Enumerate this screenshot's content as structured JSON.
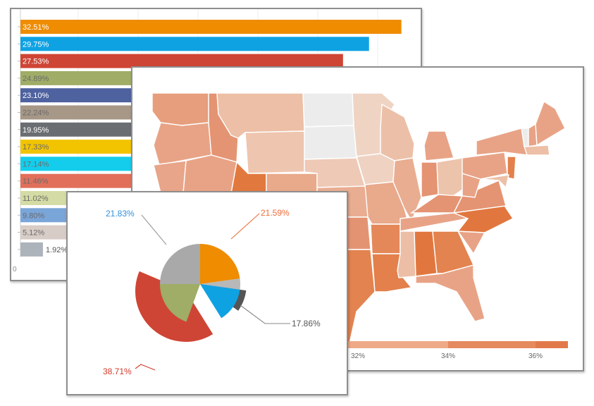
{
  "chart_data": [
    {
      "type": "bar",
      "orientation": "horizontal",
      "values": [
        32.51,
        29.75,
        27.53,
        24.89,
        23.1,
        22.24,
        19.95,
        17.33,
        17.14,
        11.46,
        11.02,
        9.8,
        5.12,
        1.92
      ],
      "labels": [
        "32.51%",
        "29.75%",
        "27.53%",
        "24.89%",
        "23.10%",
        "22.24%",
        "19.95%",
        "17.33%",
        "17.14%",
        "11.46%",
        "11.02%",
        "9.80%",
        "5.12%",
        "1.92%"
      ],
      "colors": [
        "#ef8c00",
        "#0fa2e3",
        "#cf4535",
        "#9fad66",
        "#4e62a0",
        "#a69787",
        "#6a6d71",
        "#f2c400",
        "#14cdec",
        "#e26f5a",
        "#d4dba4",
        "#7aa5d9",
        "#d8ccc6",
        "#adb3bb"
      ],
      "axis_zero_label": "0",
      "grid": true
    },
    {
      "type": "choropleth",
      "legend_ticks": [
        "32%",
        "34%",
        "36%"
      ],
      "legend_colors": [
        "#f7d8c8",
        "#eeaa86",
        "#e58a5e",
        "#e2794a"
      ]
    },
    {
      "type": "pie",
      "slices": [
        {
          "label": "21.59%",
          "value": 21.59,
          "color": "#ef8c00"
        },
        {
          "label": "17.86%",
          "value": 17.86,
          "color": "#0fa2e3"
        },
        {
          "label": "38.71%",
          "value": 38.71,
          "color": "#cf4535"
        },
        {
          "label": "",
          "value": 0.0,
          "color": "#9fad66"
        },
        {
          "label": "21.83%",
          "value": 21.83,
          "color": "#a9a9a9"
        }
      ],
      "label_colors": {
        "21.59%": "#ef6c3a",
        "17.86%": "#555555",
        "38.71%": "#d23a2a",
        "21.83%": "#2f8fdc"
      }
    }
  ]
}
